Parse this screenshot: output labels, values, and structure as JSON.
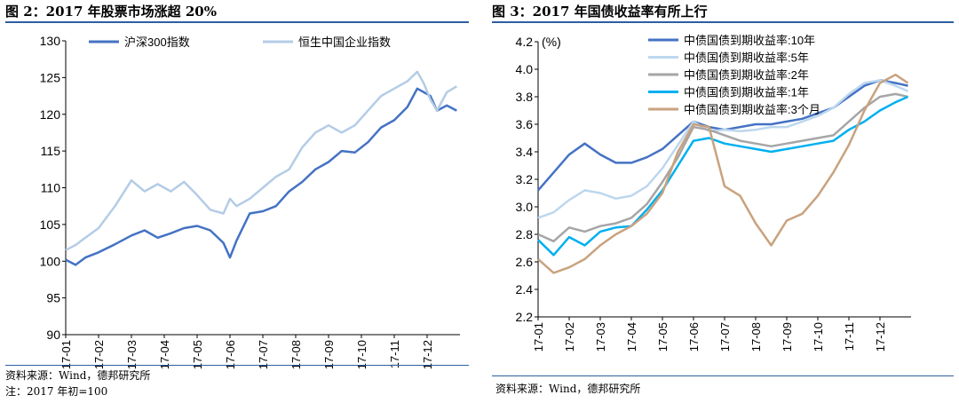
{
  "left": {
    "title": "图 2：2017 年股票市场涨超 20%",
    "source": "资料来源：Wind，德邦研究所",
    "note": "注：2017 年初=100"
  },
  "right": {
    "title": "图 3：2017 年国债收益率有所上行",
    "source": "资料来源：Wind，德邦研究所"
  },
  "colors": {
    "rule": "#2e5f9e",
    "hs300": "#4472c4",
    "hscei": "#b4cce6",
    "y10": "#4472c4",
    "y5": "#bdd7ee",
    "y2": "#a6a6a6",
    "y1": "#00b0f0",
    "m3": "#c9a27e"
  },
  "chart_data": [
    {
      "type": "line",
      "title": "图 2：2017 年股票市场涨超 20%",
      "ylim": [
        90,
        130
      ],
      "yticks": [
        90,
        95,
        100,
        105,
        110,
        115,
        120,
        125,
        130
      ],
      "xtick_labels": [
        "17-01",
        "17-02",
        "17-03",
        "17-04",
        "17-05",
        "17-06",
        "17-07",
        "17-08",
        "17-09",
        "17-10",
        "17-11",
        "17-12"
      ],
      "legend_position": "top",
      "series": [
        {
          "name": "沪深300指数",
          "color_key": "hs300",
          "x": [
            0,
            0.3,
            0.6,
            1.0,
            1.5,
            2.0,
            2.4,
            2.8,
            3.2,
            3.6,
            4.0,
            4.4,
            4.8,
            5.0,
            5.2,
            5.6,
            6.0,
            6.4,
            6.8,
            7.2,
            7.6,
            8.0,
            8.4,
            8.8,
            9.2,
            9.6,
            10.0,
            10.4,
            10.7,
            10.9,
            11.1,
            11.3,
            11.6,
            11.9
          ],
          "values": [
            100.2,
            99.5,
            100.5,
            101.2,
            102.3,
            103.5,
            104.2,
            103.2,
            103.8,
            104.5,
            104.8,
            104.2,
            102.5,
            100.5,
            102.8,
            106.5,
            106.8,
            107.5,
            109.5,
            110.8,
            112.5,
            113.5,
            115.0,
            114.8,
            116.2,
            118.2,
            119.2,
            121.0,
            123.5,
            123.0,
            122.5,
            120.5,
            121.2,
            120.5
          ]
        },
        {
          "name": "恒生中国企业指数",
          "color_key": "hscei",
          "x": [
            0,
            0.3,
            0.6,
            1.0,
            1.5,
            2.0,
            2.4,
            2.8,
            3.2,
            3.6,
            4.0,
            4.4,
            4.8,
            5.0,
            5.2,
            5.6,
            6.0,
            6.4,
            6.8,
            7.2,
            7.6,
            8.0,
            8.4,
            8.8,
            9.2,
            9.6,
            10.0,
            10.4,
            10.7,
            10.9,
            11.1,
            11.3,
            11.6,
            11.9
          ],
          "values": [
            101.5,
            102.2,
            103.2,
            104.5,
            107.5,
            111.0,
            109.5,
            110.5,
            109.5,
            110.8,
            109.0,
            107.0,
            106.5,
            108.5,
            107.5,
            108.5,
            110.0,
            111.5,
            112.5,
            115.5,
            117.5,
            118.5,
            117.5,
            118.5,
            120.5,
            122.5,
            123.5,
            124.5,
            125.8,
            124.2,
            122.0,
            120.5,
            123.0,
            123.8
          ]
        }
      ]
    },
    {
      "type": "line",
      "title": "图 3：2017 年国债收益率有所上行",
      "ylabel": "(%)",
      "ylim": [
        2.2,
        4.2
      ],
      "yticks": [
        2.2,
        2.4,
        2.6,
        2.8,
        3.0,
        3.2,
        3.4,
        3.6,
        3.8,
        4.0,
        4.2
      ],
      "xtick_labels": [
        "17-01",
        "17-02",
        "17-03",
        "17-04",
        "17-05",
        "17-06",
        "17-07",
        "17-08",
        "17-09",
        "17-10",
        "17-11",
        "17-12"
      ],
      "legend_position": "top",
      "series": [
        {
          "name": "中债国债到期收益率:10年",
          "color_key": "y10",
          "x": [
            0,
            0.5,
            1.0,
            1.5,
            2.0,
            2.5,
            3.0,
            3.5,
            4.0,
            4.5,
            5.0,
            5.5,
            6.0,
            6.5,
            7.0,
            7.5,
            8.0,
            8.5,
            9.0,
            9.5,
            10.0,
            10.5,
            11.0,
            11.5,
            11.9
          ],
          "values": [
            3.12,
            3.25,
            3.38,
            3.46,
            3.38,
            3.32,
            3.32,
            3.36,
            3.42,
            3.52,
            3.62,
            3.58,
            3.56,
            3.58,
            3.6,
            3.6,
            3.62,
            3.64,
            3.68,
            3.72,
            3.8,
            3.88,
            3.92,
            3.9,
            3.88
          ]
        },
        {
          "name": "中债国债到期收益率:5年",
          "color_key": "y5",
          "x": [
            0,
            0.5,
            1.0,
            1.5,
            2.0,
            2.5,
            3.0,
            3.5,
            4.0,
            4.5,
            5.0,
            5.5,
            6.0,
            6.5,
            7.0,
            7.5,
            8.0,
            8.5,
            9.0,
            9.5,
            10.0,
            10.5,
            11.0,
            11.5,
            11.9
          ],
          "values": [
            2.92,
            2.96,
            3.05,
            3.12,
            3.1,
            3.06,
            3.08,
            3.15,
            3.28,
            3.45,
            3.62,
            3.55,
            3.56,
            3.55,
            3.56,
            3.58,
            3.58,
            3.62,
            3.66,
            3.72,
            3.82,
            3.9,
            3.92,
            3.88,
            3.84
          ]
        },
        {
          "name": "中债国债到期收益率:2年",
          "color_key": "y2",
          "x": [
            0,
            0.5,
            1.0,
            1.5,
            2.0,
            2.5,
            3.0,
            3.5,
            4.0,
            4.5,
            5.0,
            5.5,
            6.0,
            6.5,
            7.0,
            7.5,
            8.0,
            8.5,
            9.0,
            9.5,
            10.0,
            10.5,
            11.0,
            11.5,
            11.9
          ],
          "values": [
            2.8,
            2.75,
            2.85,
            2.82,
            2.86,
            2.88,
            2.92,
            3.02,
            3.18,
            3.36,
            3.58,
            3.56,
            3.52,
            3.48,
            3.46,
            3.44,
            3.46,
            3.48,
            3.5,
            3.52,
            3.62,
            3.72,
            3.8,
            3.82,
            3.8
          ]
        },
        {
          "name": "中债国债到期收益率:1年",
          "color_key": "y1",
          "x": [
            0,
            0.5,
            1.0,
            1.5,
            2.0,
            2.5,
            3.0,
            3.5,
            4.0,
            4.5,
            5.0,
            5.5,
            6.0,
            6.5,
            7.0,
            7.5,
            8.0,
            8.5,
            9.0,
            9.5,
            10.0,
            10.5,
            11.0,
            11.5,
            11.9
          ],
          "values": [
            2.76,
            2.65,
            2.78,
            2.72,
            2.82,
            2.85,
            2.86,
            2.98,
            3.12,
            3.3,
            3.48,
            3.5,
            3.46,
            3.44,
            3.42,
            3.4,
            3.42,
            3.44,
            3.46,
            3.48,
            3.56,
            3.62,
            3.7,
            3.76,
            3.8
          ]
        },
        {
          "name": "中债国债到期收益率:3个月",
          "color_key": "m3",
          "x": [
            0,
            0.5,
            1.0,
            1.5,
            2.0,
            2.5,
            3.0,
            3.5,
            4.0,
            4.5,
            5.0,
            5.5,
            6.0,
            6.5,
            7.0,
            7.5,
            8.0,
            8.5,
            9.0,
            9.5,
            10.0,
            10.5,
            11.0,
            11.5,
            11.9
          ],
          "values": [
            2.62,
            2.52,
            2.56,
            2.62,
            2.72,
            2.8,
            2.86,
            2.95,
            3.1,
            3.4,
            3.6,
            3.58,
            3.15,
            3.08,
            2.88,
            2.72,
            2.9,
            2.95,
            3.08,
            3.25,
            3.45,
            3.7,
            3.9,
            3.96,
            3.9
          ]
        }
      ]
    }
  ]
}
